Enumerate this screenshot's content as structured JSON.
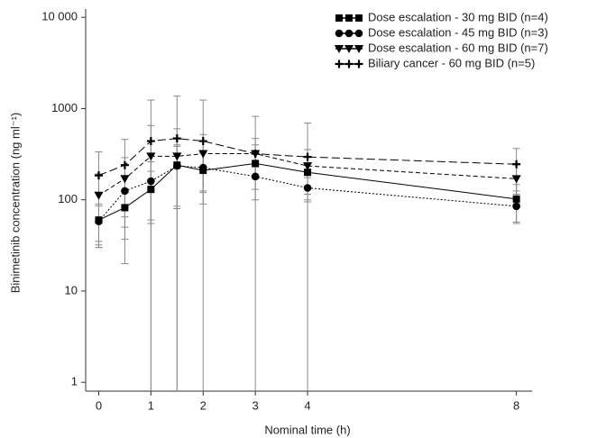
{
  "chart_data": {
    "type": "line",
    "x_label": "Nominal time (h)",
    "y_label": "Binimetinib concentration (ng ml⁻¹)",
    "log_y": true,
    "legend": "upper right",
    "xlim": [
      -0.25,
      8.3
    ],
    "xticks": [
      0,
      1,
      2,
      3,
      4,
      8
    ],
    "ylim": [
      0.8,
      11000
    ],
    "yticks": [
      1,
      10,
      100,
      1000,
      {
        "value": 10000,
        "label": "10 000"
      }
    ],
    "x": [
      0,
      0.5,
      1,
      1.5,
      2,
      3,
      4,
      8
    ],
    "error_color": "#8a8a8a",
    "series": [
      {
        "name": "Dose escalation - 30 mg BID (n=4)",
        "color": "#000000",
        "marker": "square",
        "linestyle": "solid",
        "values": [
          60,
          82,
          130,
          240,
          210,
          250,
          200,
          102
        ],
        "errors": [
          30,
          45,
          75,
          160,
          120,
          150,
          100,
          45
        ]
      },
      {
        "name": "Dose escalation - 45 mg BID (n=3)",
        "color": "#000000",
        "marker": "circle",
        "linestyle": "dotted",
        "values": [
          58,
          125,
          160,
          235,
          225,
          180,
          135,
          85
        ],
        "errors": [
          28,
          60,
          100,
          150,
          100,
          50,
          40,
          30
        ]
      },
      {
        "name": "Dose escalation - 60 mg BID (n=7)",
        "color": "#000000",
        "marker": "triangle",
        "linestyle": "dashed",
        "values": [
          112,
          170,
          300,
          300,
          320,
          320,
          235,
          170
        ],
        "errors": [
          80,
          120,
          350,
          300,
          200,
          150,
          120,
          80
        ]
      },
      {
        "name": "Biliary cancer - 60 mg BID (n=5)",
        "color": "#000000",
        "marker": "plus",
        "linestyle": "longdash",
        "values": [
          185,
          240,
          440,
          470,
          440,
          320,
          295,
          245
        ],
        "errors": [
          150,
          220,
          800,
          900,
          800,
          500,
          400,
          120
        ]
      }
    ]
  }
}
